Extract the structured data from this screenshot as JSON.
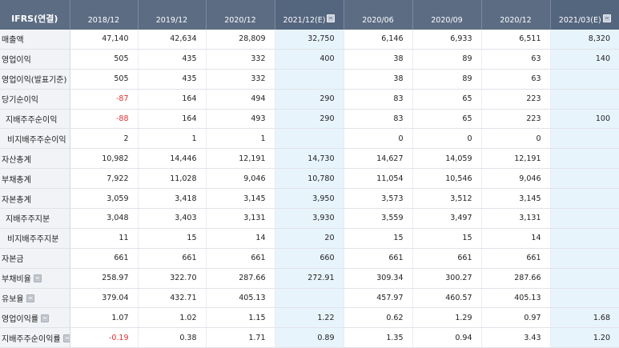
{
  "header": {
    "label": "IFRS(연결)",
    "columns": [
      {
        "label": "2018/12",
        "estimate": false
      },
      {
        "label": "2019/12",
        "estimate": false
      },
      {
        "label": "2020/12",
        "estimate": false
      },
      {
        "label": "2021/12(E)",
        "estimate": true
      },
      {
        "label": "2020/06",
        "estimate": false
      },
      {
        "label": "2020/09",
        "estimate": false
      },
      {
        "label": "2020/12",
        "estimate": false
      },
      {
        "label": "2021/03(E)",
        "estimate": true
      }
    ]
  },
  "rows": [
    {
      "name": "row-revenue",
      "label": "매출액",
      "indent": 0,
      "info": false,
      "values": [
        "47,140",
        "42,634",
        "28,809",
        "32,750",
        "6,146",
        "6,933",
        "6,511",
        "8,320"
      ]
    },
    {
      "name": "row-operating-profit",
      "label": "영업이익",
      "indent": 0,
      "info": false,
      "values": [
        "505",
        "435",
        "332",
        "400",
        "38",
        "89",
        "63",
        "140"
      ]
    },
    {
      "name": "row-operating-profit-reported",
      "label": "영업이익(발표기준)",
      "indent": 0,
      "info": false,
      "values": [
        "505",
        "435",
        "332",
        "",
        "38",
        "89",
        "63",
        ""
      ]
    },
    {
      "name": "row-net-income",
      "label": "당기순이익",
      "indent": 0,
      "info": false,
      "values": [
        "-87",
        "164",
        "494",
        "290",
        "83",
        "65",
        "223",
        ""
      ]
    },
    {
      "name": "row-controlling-net-income",
      "label": "지배주주순이익",
      "indent": 1,
      "info": false,
      "values": [
        "-88",
        "164",
        "493",
        "290",
        "83",
        "65",
        "223",
        "100"
      ]
    },
    {
      "name": "row-noncontrolling-net-income",
      "label": "비지배주주순이익",
      "indent": 2,
      "info": false,
      "values": [
        "2",
        "1",
        "1",
        "",
        "0",
        "0",
        "0",
        ""
      ]
    },
    {
      "name": "row-total-assets",
      "label": "자산총계",
      "indent": 0,
      "info": false,
      "values": [
        "10,982",
        "14,446",
        "12,191",
        "14,730",
        "14,627",
        "14,059",
        "12,191",
        ""
      ]
    },
    {
      "name": "row-total-liabilities",
      "label": "부채총계",
      "indent": 0,
      "info": false,
      "values": [
        "7,922",
        "11,028",
        "9,046",
        "10,780",
        "11,054",
        "10,546",
        "9,046",
        ""
      ]
    },
    {
      "name": "row-total-equity",
      "label": "자본총계",
      "indent": 0,
      "info": false,
      "values": [
        "3,059",
        "3,418",
        "3,145",
        "3,950",
        "3,573",
        "3,512",
        "3,145",
        ""
      ]
    },
    {
      "name": "row-controlling-equity",
      "label": "지배주주지분",
      "indent": 1,
      "info": false,
      "values": [
        "3,048",
        "3,403",
        "3,131",
        "3,930",
        "3,559",
        "3,497",
        "3,131",
        ""
      ]
    },
    {
      "name": "row-noncontrolling-equity",
      "label": "비지배주주지분",
      "indent": 2,
      "info": false,
      "values": [
        "11",
        "15",
        "14",
        "20",
        "15",
        "15",
        "14",
        ""
      ]
    },
    {
      "name": "row-capital-stock",
      "label": "자본금",
      "indent": 0,
      "info": false,
      "values": [
        "661",
        "661",
        "661",
        "660",
        "661",
        "661",
        "661",
        ""
      ]
    },
    {
      "name": "row-debt-ratio",
      "label": "부채비율",
      "indent": 0,
      "info": true,
      "values": [
        "258.97",
        "322.70",
        "287.66",
        "272.91",
        "309.34",
        "300.27",
        "287.66",
        ""
      ]
    },
    {
      "name": "row-reserve-ratio",
      "label": "유보율",
      "indent": 0,
      "info": true,
      "values": [
        "379.04",
        "432.71",
        "405.13",
        "",
        "457.97",
        "460.57",
        "405.13",
        ""
      ]
    },
    {
      "name": "row-operating-margin",
      "label": "영업이익률",
      "indent": 0,
      "info": true,
      "values": [
        "1.07",
        "1.02",
        "1.15",
        "1.22",
        "0.62",
        "1.29",
        "0.97",
        "1.68"
      ]
    },
    {
      "name": "row-controlling-net-margin",
      "label": "지배주주순이익률",
      "indent": 0,
      "info": true,
      "values": [
        "-0.19",
        "0.38",
        "1.71",
        "0.89",
        "1.35",
        "0.94",
        "3.43",
        "1.20"
      ]
    }
  ]
}
